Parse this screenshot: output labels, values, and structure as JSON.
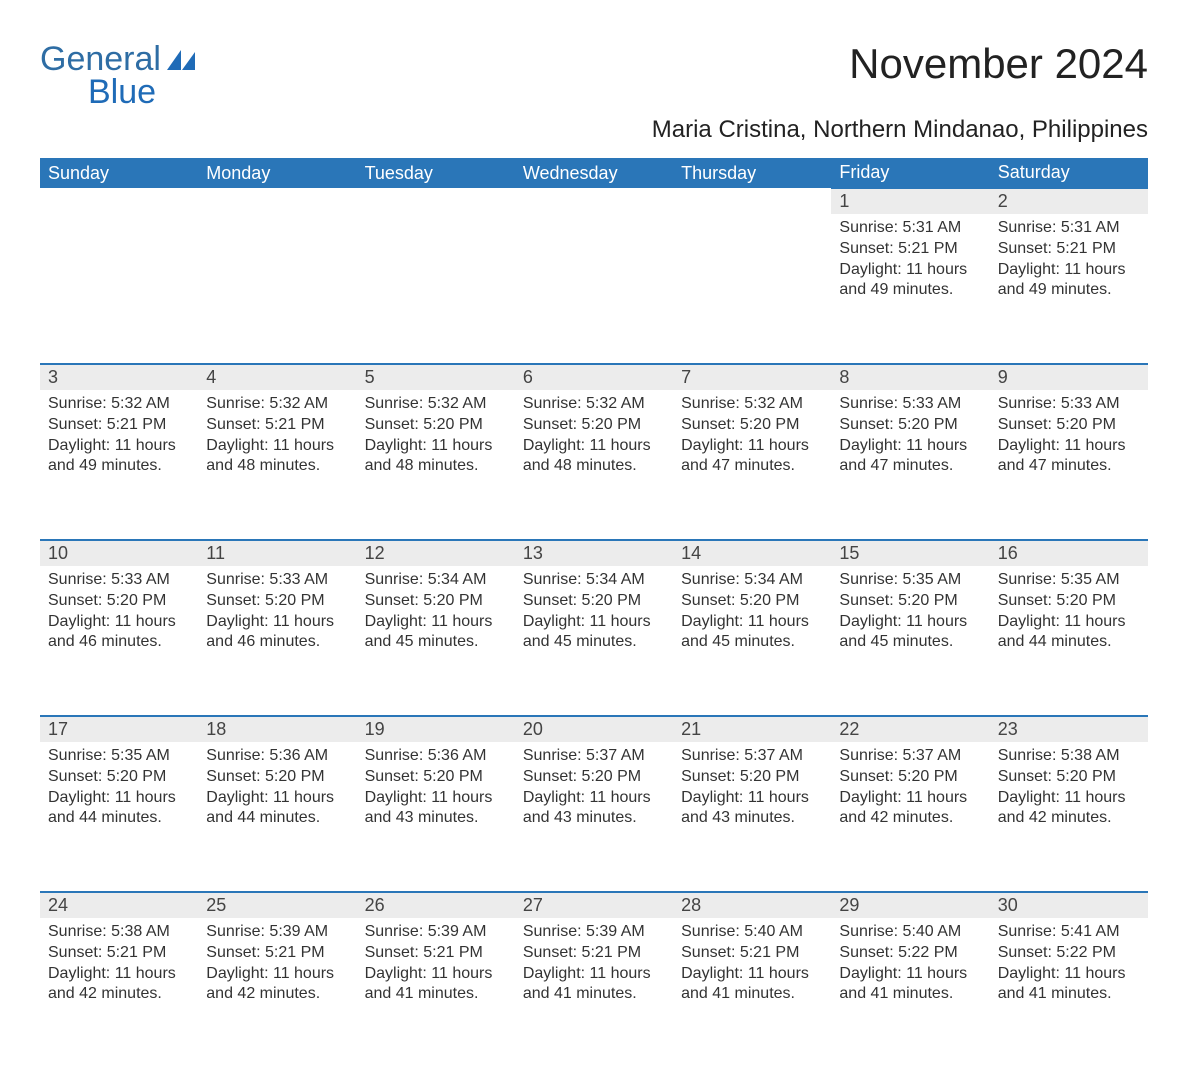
{
  "brand": {
    "part1": "General",
    "part2": "Blue",
    "color_primary": "#2a76b8",
    "logo_shape_color": "#1f6bb7"
  },
  "title": "November 2024",
  "location": "Maria Cristina, Northern Mindanao, Philippines",
  "colors": {
    "header_bg": "#2a76b8",
    "header_text": "#ffffff",
    "daynum_bg": "#ececec",
    "daynum_border_top": "#2a76b8",
    "body_text": "#333333",
    "background": "#ffffff"
  },
  "fonts": {
    "title_size_pt": 32,
    "location_size_pt": 18,
    "weekday_size_pt": 14,
    "daynum_size_pt": 14,
    "cell_size_pt": 12
  },
  "layout": {
    "columns": 7,
    "rows": 5,
    "first_weekday": "Sunday"
  },
  "weekdays": [
    "Sunday",
    "Monday",
    "Tuesday",
    "Wednesday",
    "Thursday",
    "Friday",
    "Saturday"
  ],
  "weeks": [
    [
      null,
      null,
      null,
      null,
      null,
      {
        "day": "1",
        "sunrise": "Sunrise: 5:31 AM",
        "sunset": "Sunset: 5:21 PM",
        "daylight": "Daylight: 11 hours and 49 minutes."
      },
      {
        "day": "2",
        "sunrise": "Sunrise: 5:31 AM",
        "sunset": "Sunset: 5:21 PM",
        "daylight": "Daylight: 11 hours and 49 minutes."
      }
    ],
    [
      {
        "day": "3",
        "sunrise": "Sunrise: 5:32 AM",
        "sunset": "Sunset: 5:21 PM",
        "daylight": "Daylight: 11 hours and 49 minutes."
      },
      {
        "day": "4",
        "sunrise": "Sunrise: 5:32 AM",
        "sunset": "Sunset: 5:21 PM",
        "daylight": "Daylight: 11 hours and 48 minutes."
      },
      {
        "day": "5",
        "sunrise": "Sunrise: 5:32 AM",
        "sunset": "Sunset: 5:20 PM",
        "daylight": "Daylight: 11 hours and 48 minutes."
      },
      {
        "day": "6",
        "sunrise": "Sunrise: 5:32 AM",
        "sunset": "Sunset: 5:20 PM",
        "daylight": "Daylight: 11 hours and 48 minutes."
      },
      {
        "day": "7",
        "sunrise": "Sunrise: 5:32 AM",
        "sunset": "Sunset: 5:20 PM",
        "daylight": "Daylight: 11 hours and 47 minutes."
      },
      {
        "day": "8",
        "sunrise": "Sunrise: 5:33 AM",
        "sunset": "Sunset: 5:20 PM",
        "daylight": "Daylight: 11 hours and 47 minutes."
      },
      {
        "day": "9",
        "sunrise": "Sunrise: 5:33 AM",
        "sunset": "Sunset: 5:20 PM",
        "daylight": "Daylight: 11 hours and 47 minutes."
      }
    ],
    [
      {
        "day": "10",
        "sunrise": "Sunrise: 5:33 AM",
        "sunset": "Sunset: 5:20 PM",
        "daylight": "Daylight: 11 hours and 46 minutes."
      },
      {
        "day": "11",
        "sunrise": "Sunrise: 5:33 AM",
        "sunset": "Sunset: 5:20 PM",
        "daylight": "Daylight: 11 hours and 46 minutes."
      },
      {
        "day": "12",
        "sunrise": "Sunrise: 5:34 AM",
        "sunset": "Sunset: 5:20 PM",
        "daylight": "Daylight: 11 hours and 45 minutes."
      },
      {
        "day": "13",
        "sunrise": "Sunrise: 5:34 AM",
        "sunset": "Sunset: 5:20 PM",
        "daylight": "Daylight: 11 hours and 45 minutes."
      },
      {
        "day": "14",
        "sunrise": "Sunrise: 5:34 AM",
        "sunset": "Sunset: 5:20 PM",
        "daylight": "Daylight: 11 hours and 45 minutes."
      },
      {
        "day": "15",
        "sunrise": "Sunrise: 5:35 AM",
        "sunset": "Sunset: 5:20 PM",
        "daylight": "Daylight: 11 hours and 45 minutes."
      },
      {
        "day": "16",
        "sunrise": "Sunrise: 5:35 AM",
        "sunset": "Sunset: 5:20 PM",
        "daylight": "Daylight: 11 hours and 44 minutes."
      }
    ],
    [
      {
        "day": "17",
        "sunrise": "Sunrise: 5:35 AM",
        "sunset": "Sunset: 5:20 PM",
        "daylight": "Daylight: 11 hours and 44 minutes."
      },
      {
        "day": "18",
        "sunrise": "Sunrise: 5:36 AM",
        "sunset": "Sunset: 5:20 PM",
        "daylight": "Daylight: 11 hours and 44 minutes."
      },
      {
        "day": "19",
        "sunrise": "Sunrise: 5:36 AM",
        "sunset": "Sunset: 5:20 PM",
        "daylight": "Daylight: 11 hours and 43 minutes."
      },
      {
        "day": "20",
        "sunrise": "Sunrise: 5:37 AM",
        "sunset": "Sunset: 5:20 PM",
        "daylight": "Daylight: 11 hours and 43 minutes."
      },
      {
        "day": "21",
        "sunrise": "Sunrise: 5:37 AM",
        "sunset": "Sunset: 5:20 PM",
        "daylight": "Daylight: 11 hours and 43 minutes."
      },
      {
        "day": "22",
        "sunrise": "Sunrise: 5:37 AM",
        "sunset": "Sunset: 5:20 PM",
        "daylight": "Daylight: 11 hours and 42 minutes."
      },
      {
        "day": "23",
        "sunrise": "Sunrise: 5:38 AM",
        "sunset": "Sunset: 5:20 PM",
        "daylight": "Daylight: 11 hours and 42 minutes."
      }
    ],
    [
      {
        "day": "24",
        "sunrise": "Sunrise: 5:38 AM",
        "sunset": "Sunset: 5:21 PM",
        "daylight": "Daylight: 11 hours and 42 minutes."
      },
      {
        "day": "25",
        "sunrise": "Sunrise: 5:39 AM",
        "sunset": "Sunset: 5:21 PM",
        "daylight": "Daylight: 11 hours and 42 minutes."
      },
      {
        "day": "26",
        "sunrise": "Sunrise: 5:39 AM",
        "sunset": "Sunset: 5:21 PM",
        "daylight": "Daylight: 11 hours and 41 minutes."
      },
      {
        "day": "27",
        "sunrise": "Sunrise: 5:39 AM",
        "sunset": "Sunset: 5:21 PM",
        "daylight": "Daylight: 11 hours and 41 minutes."
      },
      {
        "day": "28",
        "sunrise": "Sunrise: 5:40 AM",
        "sunset": "Sunset: 5:21 PM",
        "daylight": "Daylight: 11 hours and 41 minutes."
      },
      {
        "day": "29",
        "sunrise": "Sunrise: 5:40 AM",
        "sunset": "Sunset: 5:22 PM",
        "daylight": "Daylight: 11 hours and 41 minutes."
      },
      {
        "day": "30",
        "sunrise": "Sunrise: 5:41 AM",
        "sunset": "Sunset: 5:22 PM",
        "daylight": "Daylight: 11 hours and 41 minutes."
      }
    ]
  ]
}
